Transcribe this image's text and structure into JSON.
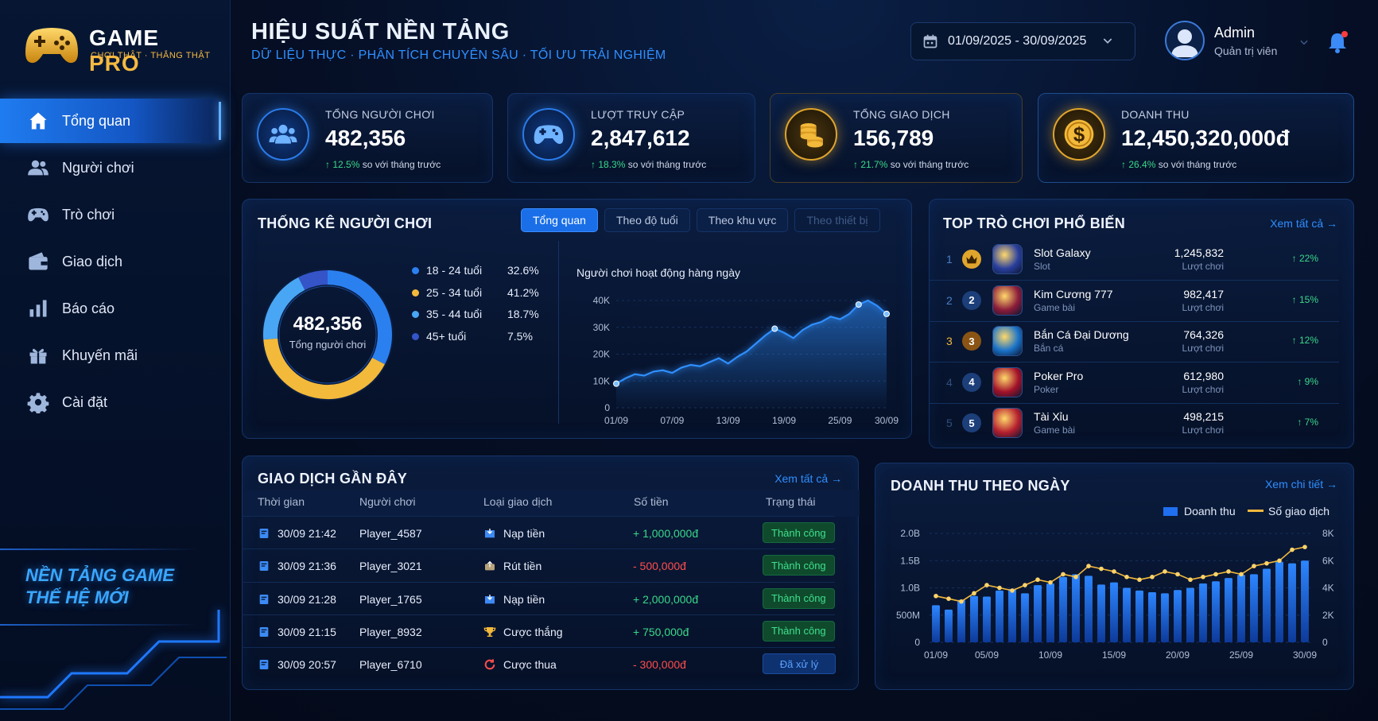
{
  "brand": {
    "name_a": "GAME",
    "name_b": "PRO",
    "tagline": "CHƠI THẬT · THẮNG THẬT"
  },
  "nav": [
    {
      "label": "Tổng quan",
      "icon": "home-icon",
      "active": true
    },
    {
      "label": "Người chơi",
      "icon": "users-icon"
    },
    {
      "label": "Trò chơi",
      "icon": "gamepad-icon"
    },
    {
      "label": "Giao dịch",
      "icon": "wallet-icon"
    },
    {
      "label": "Báo cáo",
      "icon": "bar-chart-icon"
    },
    {
      "label": "Khuyến mãi",
      "icon": "gift-icon"
    },
    {
      "label": "Cài đặt",
      "icon": "gear-icon"
    }
  ],
  "slogan": {
    "line1": "NỀN TẢNG GAME",
    "line2": "THẾ HỆ MỚI"
  },
  "header": {
    "title": "HIỆU SUẤT NỀN TẢNG",
    "subtitle": "DỮ LIỆU THỰC  ·  PHÂN TÍCH CHUYÊN SÂU  ·  TỐI ƯU TRẢI NGHIỆM",
    "date_range": "01/09/2025 - 30/09/2025"
  },
  "user": {
    "name": "Admin",
    "role": "Quản trị viên"
  },
  "kpis": [
    {
      "label": "TỔNG NGƯỜI CHƠI",
      "value": "482,356",
      "change": "12.5%",
      "suffix": "so với tháng trước",
      "icon": "users-icon",
      "color": "#2a7bea"
    },
    {
      "label": "LƯỢT TRUY CẬP",
      "value": "2,847,612",
      "change": "18.3%",
      "suffix": "so với tháng trước",
      "icon": "gamepad-icon",
      "color": "#2a7bea"
    },
    {
      "label": "TỔNG GIAO DỊCH",
      "value": "156,789",
      "change": "21.7%",
      "suffix": "so với tháng trước",
      "icon": "coins-icon",
      "color": "#e0a52c"
    },
    {
      "label": "DOANH THU",
      "value": "12,450,320,000đ",
      "change": "26.4%",
      "suffix": "so với tháng trước",
      "icon": "dollar-icon",
      "color": "#e0a52c"
    }
  ],
  "player_stats": {
    "title": "THỐNG KÊ NGƯỜI CHƠI",
    "tabs": [
      "Tổng quan",
      "Theo độ tuổi",
      "Theo khu vực",
      "Theo thiết bị"
    ],
    "donut_value": "482,356",
    "donut_label": "Tổng người chơi",
    "line_title": "Người chơi hoạt động hàng ngày"
  },
  "top_games": {
    "title": "TOP TRÒ CHƠI PHỔ BIẾN",
    "view_all": "Xem tất cả",
    "items": [
      {
        "rank": "1",
        "name": "Slot Galaxy",
        "category": "Slot",
        "plays": "1,245,832",
        "unit": "Lượt chơi",
        "trend": "22%",
        "badge_color": "#e0a52c",
        "thumb": "#2a3f9e"
      },
      {
        "rank": "2",
        "name": "Kim Cương 777",
        "category": "Game bài",
        "plays": "982,417",
        "unit": "Lượt chơi",
        "trend": "15%",
        "badge_color": "#1c3f7a",
        "thumb": "#8b1c3a"
      },
      {
        "rank": "3",
        "name": "Bắn Cá Đại Dương",
        "category": "Bắn cá",
        "plays": "764,326",
        "unit": "Lượt chơi",
        "trend": "12%",
        "badge_color": "#8a5414",
        "thumb": "#1a73c9"
      },
      {
        "rank": "4",
        "name": "Poker Pro",
        "category": "Poker",
        "plays": "612,980",
        "unit": "Lượt chơi",
        "trend": "9%",
        "badge_color": "#1c3f7a",
        "thumb": "#a3122a"
      },
      {
        "rank": "5",
        "name": "Tài Xỉu",
        "category": "Game bài",
        "plays": "498,215",
        "unit": "Lượt chơi",
        "trend": "7%",
        "badge_color": "#1c3f7a",
        "thumb": "#b51f2f"
      }
    ]
  },
  "transactions": {
    "title": "GIAO DỊCH GẦN ĐÂY",
    "view_all": "Xem tất cả",
    "columns": [
      "Thời gian",
      "Người chơi",
      "Loại giao dịch",
      "Số tiền",
      "Trạng thái"
    ],
    "rows": [
      {
        "time": "30/09 21:42",
        "player": "Player_4587",
        "type": "Nạp tiền",
        "amount": "+ 1,000,000đ",
        "status": "Thành công",
        "sign": "pos",
        "type_icon": "deposit-icon",
        "status_kind": "ok"
      },
      {
        "time": "30/09 21:36",
        "player": "Player_3021",
        "type": "Rút tiền",
        "amount": "- 500,000đ",
        "status": "Thành công",
        "sign": "neg",
        "type_icon": "withdraw-icon",
        "status_kind": "ok"
      },
      {
        "time": "30/09 21:28",
        "player": "Player_1765",
        "type": "Nạp tiền",
        "amount": "+ 2,000,000đ",
        "status": "Thành công",
        "sign": "pos",
        "type_icon": "deposit-icon",
        "status_kind": "ok"
      },
      {
        "time": "30/09 21:15",
        "player": "Player_8932",
        "type": "Cược thắng",
        "amount": "+ 750,000đ",
        "status": "Thành công",
        "sign": "pos",
        "type_icon": "trophy-icon",
        "status_kind": "ok"
      },
      {
        "time": "30/09 20:57",
        "player": "Player_6710",
        "type": "Cược thua",
        "amount": "- 300,000đ",
        "status": "Đã xử lý",
        "sign": "neg",
        "type_icon": "refresh-icon",
        "status_kind": "done"
      }
    ]
  },
  "revenue": {
    "title": "DOANH THU THEO NGÀY",
    "view_detail": "Xem chi tiết"
  },
  "chart_data": [
    {
      "type": "pie",
      "categories": [
        "18 - 24 tuổi",
        "25 - 34 tuổi",
        "35 - 44 tuổi",
        "45+ tuổi"
      ],
      "values": [
        32.6,
        41.2,
        18.7,
        7.5
      ],
      "labels": [
        "32.6%",
        "41.2%",
        "18.7%",
        "7.5%"
      ],
      "colors": [
        "#2b80f0",
        "#f2b93b",
        "#49a6f5",
        "#3554c8"
      ]
    },
    {
      "type": "area",
      "title": "Người chơi hoạt động hàng ngày",
      "x": [
        "01/09",
        "02/09",
        "03/09",
        "04/09",
        "05/09",
        "06/09",
        "07/09",
        "08/09",
        "09/09",
        "10/09",
        "11/09",
        "12/09",
        "13/09",
        "14/09",
        "15/09",
        "16/09",
        "17/09",
        "18/09",
        "19/09",
        "20/09",
        "21/09",
        "22/09",
        "23/09",
        "24/09",
        "25/09",
        "26/09",
        "27/09",
        "28/09",
        "29/09",
        "30/09"
      ],
      "x_ticks": [
        "01/09",
        "07/09",
        "13/09",
        "19/09",
        "25/09",
        "30/09"
      ],
      "values": [
        9000,
        11000,
        12500,
        12000,
        13500,
        14000,
        13000,
        15000,
        16000,
        15500,
        17000,
        18500,
        16500,
        19000,
        21000,
        24000,
        27000,
        29500,
        28000,
        26000,
        29000,
        31000,
        32000,
        34000,
        33000,
        35000,
        38500,
        40000,
        38000,
        35000
      ],
      "ylim": [
        0,
        40000
      ],
      "y_ticks": [
        "0",
        "10K",
        "20K",
        "30K",
        "40K"
      ],
      "color": "#2f8fff"
    },
    {
      "type": "bar",
      "legend": [
        "Doanh thu",
        "Số giao dịch"
      ],
      "legend_position": "top-right",
      "x": [
        "01/09",
        "02/09",
        "03/09",
        "04/09",
        "05/09",
        "06/09",
        "07/09",
        "08/09",
        "09/09",
        "10/09",
        "11/09",
        "12/09",
        "13/09",
        "14/09",
        "15/09",
        "16/09",
        "17/09",
        "18/09",
        "19/09",
        "20/09",
        "21/09",
        "22/09",
        "23/09",
        "24/09",
        "25/09",
        "26/09",
        "27/09",
        "28/09",
        "29/09",
        "30/09"
      ],
      "x_ticks": [
        "01/09",
        "05/09",
        "10/09",
        "15/09",
        "20/09",
        "25/09",
        "30/09"
      ],
      "series": [
        {
          "name": "Doanh thu",
          "axis": "left",
          "color": "#1f6ff0",
          "values": [
            0.68,
            0.6,
            0.78,
            0.85,
            0.84,
            0.95,
            0.98,
            0.9,
            1.05,
            1.08,
            1.2,
            1.25,
            1.22,
            1.06,
            1.1,
            1.0,
            0.95,
            0.92,
            0.9,
            0.96,
            1.0,
            1.08,
            1.12,
            1.18,
            1.24,
            1.25,
            1.35,
            1.48,
            1.45,
            1.5
          ]
        },
        {
          "name": "Số giao dịch",
          "axis": "right",
          "color": "#f2b93b",
          "values": [
            3400,
            3200,
            3000,
            3600,
            4200,
            4000,
            3800,
            4200,
            4600,
            4400,
            5000,
            4800,
            5600,
            5400,
            5200,
            4800,
            4600,
            4800,
            5200,
            5000,
            4600,
            4800,
            5000,
            5200,
            5000,
            5600,
            5800,
            6000,
            6800,
            7000
          ]
        }
      ],
      "ylim_left": [
        0,
        2.0
      ],
      "y_ticks_left": [
        "0",
        "500M",
        "1.0B",
        "1.5B",
        "2.0B"
      ],
      "ylim_right": [
        0,
        8000
      ],
      "y_ticks_right": [
        "0",
        "2K",
        "4K",
        "6K",
        "8K"
      ]
    }
  ]
}
